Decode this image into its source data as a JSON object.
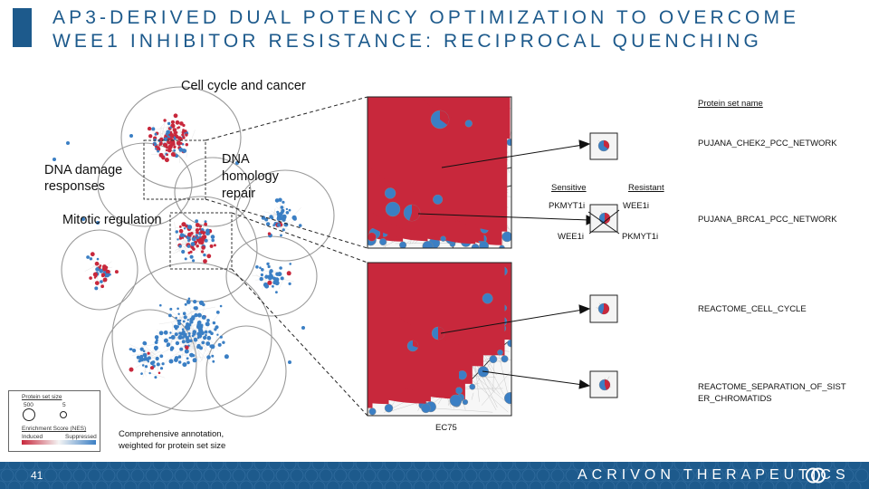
{
  "title": {
    "line1": "AP3-DERIVED DUAL POTENCY OPTIMIZATION TO OVERCOME",
    "line2": "WEE1 INHIBITOR RESISTANCE: RECIPROCAL QUENCHING"
  },
  "network_labels": {
    "cell_cycle": "Cell cycle and cancer",
    "dna_damage_1": "DNA damage",
    "dna_damage_2": "responses",
    "dna_homology_1": "DNA",
    "dna_homology_2": "homology",
    "dna_homology_3": "repair",
    "mitotic": "Mitotic regulation"
  },
  "annotation": {
    "line1": "Comprehensive annotation,",
    "line2": "weighted for protein set size"
  },
  "ec_label": "EC75",
  "legend": {
    "size_title": "Protein set size",
    "size_large": "500",
    "size_small": "5",
    "nes_title": "Enrichment Score (NES)",
    "induced": "Induced",
    "suppressed": "Suppressed",
    "colors": {
      "induced": "#c8283c",
      "suppressed": "#3b7fc4"
    }
  },
  "quench": {
    "sensitive": "Sensitive",
    "resistant": "Resistant",
    "top_left": "PKMYT1i",
    "top_right": "WEE1i",
    "bottom_left": "WEE1i",
    "bottom_right": "PKMYT1i"
  },
  "protein_sets": {
    "header": "Protein set name",
    "items": [
      "PUJANA_CHEK2_PCC_NETWORK",
      "PUJANA_BRCA1_PCC_NETWORK",
      "REACTOME_CELL_CYCLE",
      "REACTOME_SEPARATION_OF_SIST",
      "ER_CHROMATIDS"
    ]
  },
  "footer": {
    "page_number": "41",
    "brand": "ACRIVON THERAPEUTICS"
  },
  "colors": {
    "brand": "#1d5a8c",
    "red_node": "#c8283c",
    "blue_node": "#3b7fc4"
  }
}
